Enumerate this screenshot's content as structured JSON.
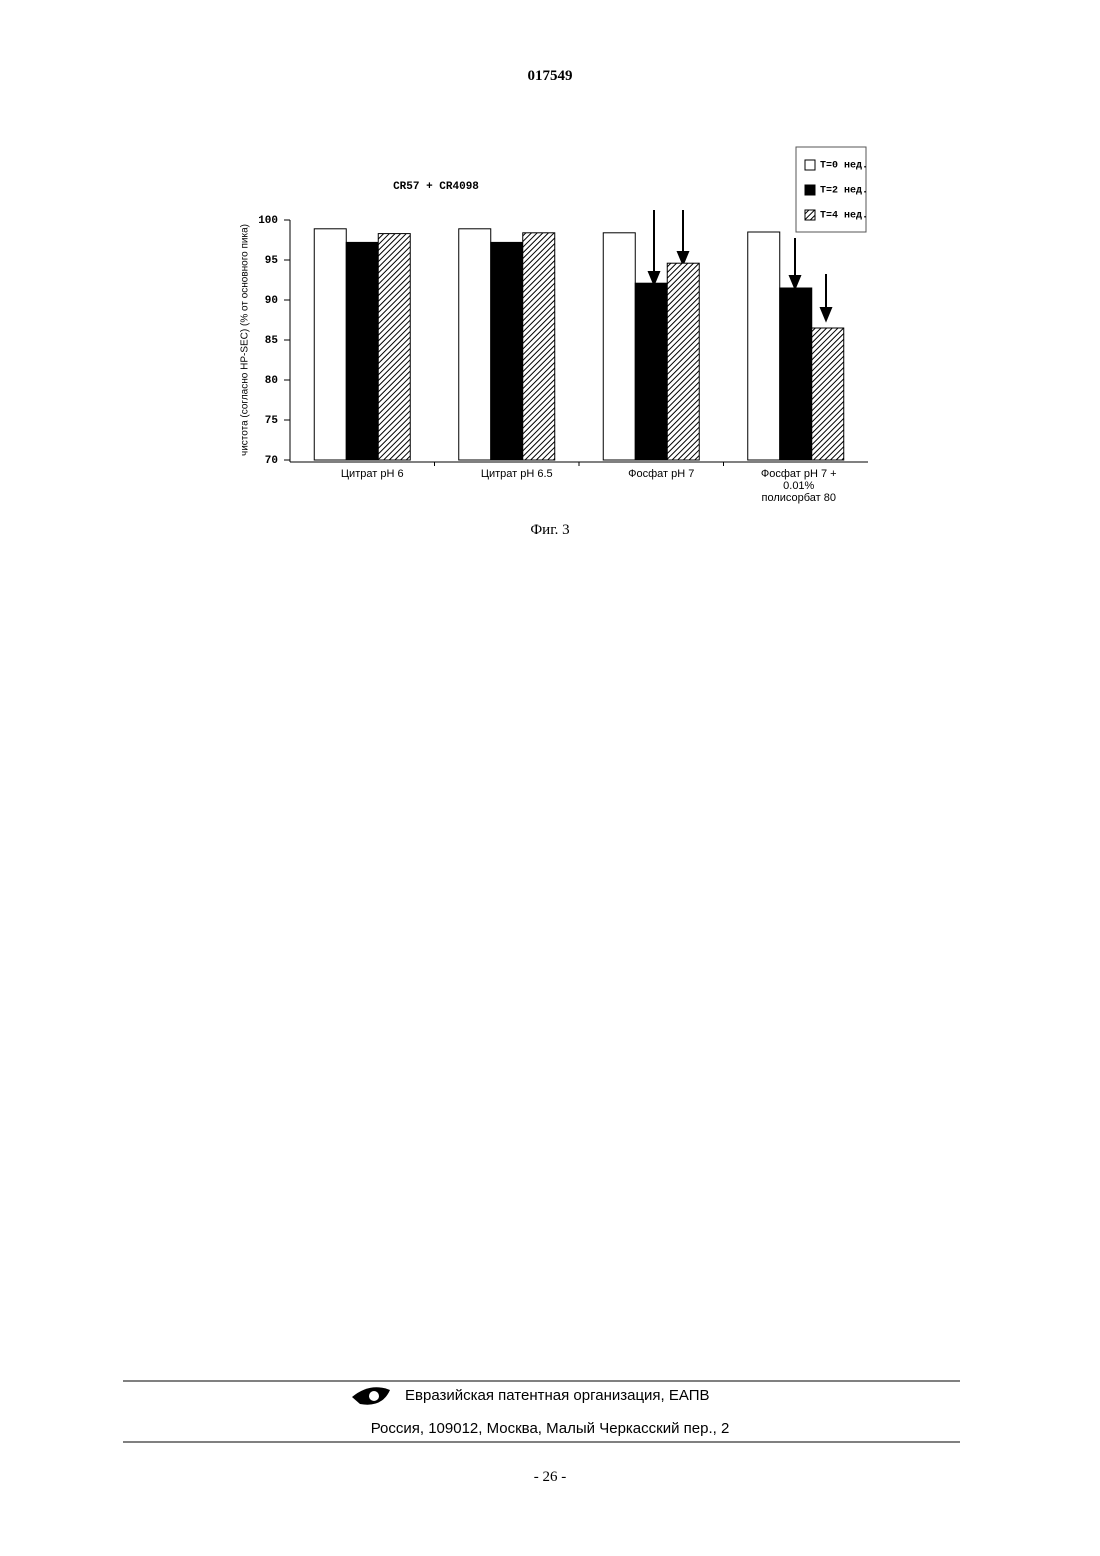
{
  "header": {
    "number": "017549"
  },
  "chart_data": {
    "type": "bar",
    "title": "CR57 + CR4098",
    "y_label": "чистота (согласно HP-SEC) (% от основного пика)",
    "categories": [
      "Цитрат pH 6",
      "Цитрат pH 6.5",
      "Фосфат pH 7",
      "Фосфат pH 7 + 0.01% полисорбат 80"
    ],
    "series": [
      {
        "name": "T=0 нед.",
        "color": "#ffffff",
        "values": [
          98.9,
          98.9,
          98.4,
          98.5
        ]
      },
      {
        "name": "T=2 нед.",
        "color": "#000000",
        "values": [
          97.2,
          97.2,
          92.1,
          91.5
        ]
      },
      {
        "name": "T=4 нед.",
        "color": "hatch",
        "values": [
          98.3,
          98.4,
          94.6,
          86.5
        ]
      }
    ],
    "ylim": [
      70,
      100
    ],
    "yticks": [
      70,
      75,
      80,
      85,
      90,
      95,
      100
    ],
    "legend": "upper-right"
  },
  "caption": "Фиг. 3",
  "footer": {
    "organization": "Евразийская патентная организация, ЕАПВ",
    "address": "Россия, 109012, Москва, Малый Черкасский пер., 2"
  },
  "page_number": "- 26 -"
}
